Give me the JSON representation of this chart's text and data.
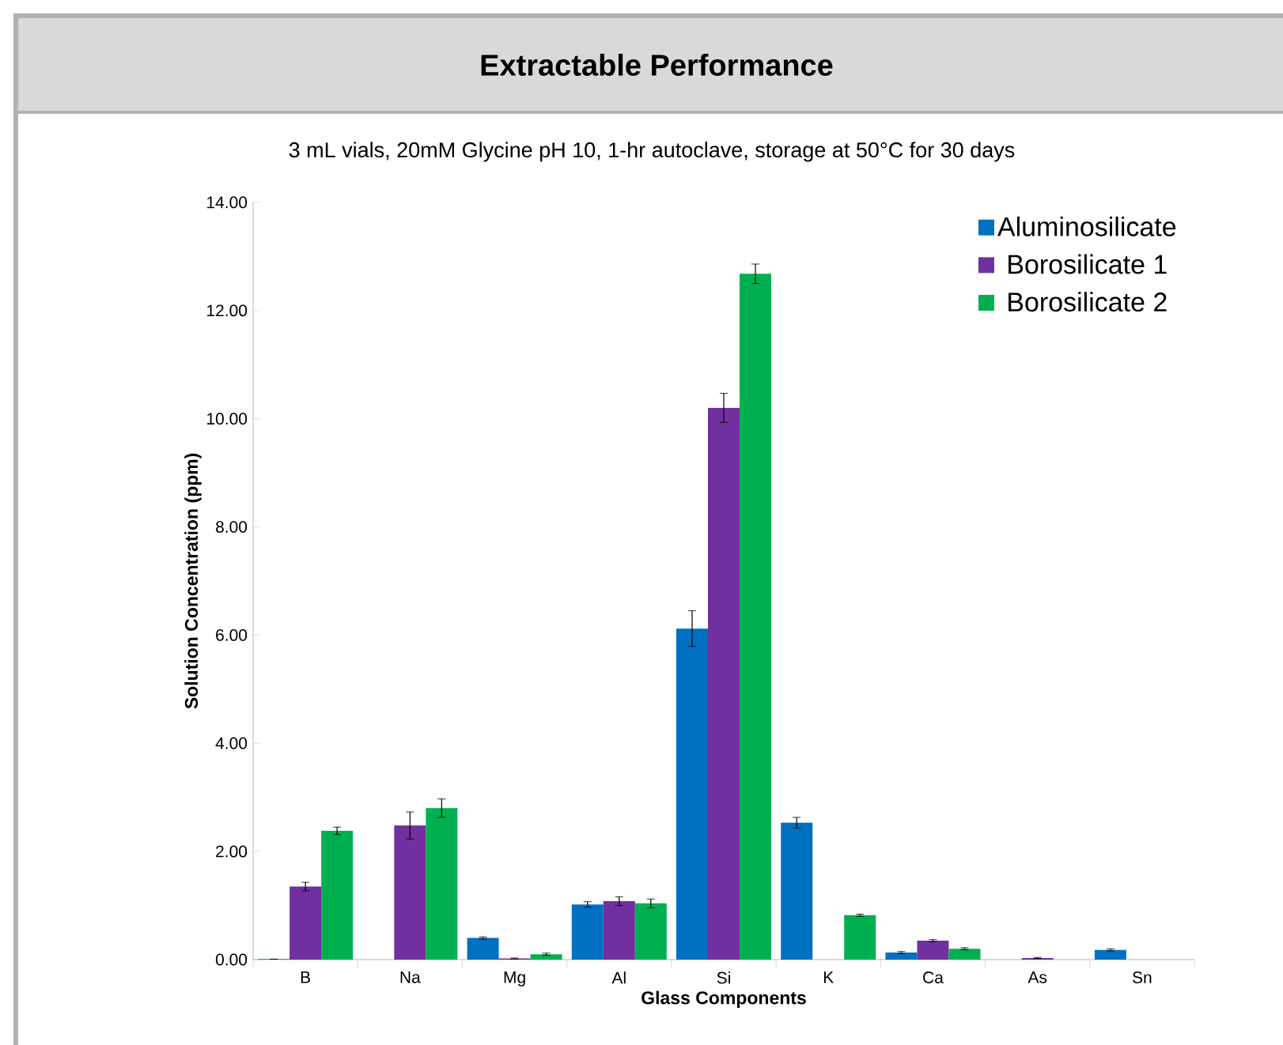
{
  "chart_data": {
    "type": "bar",
    "title": "Extractable Performance",
    "subtitle": "3 mL vials, 20mM Glycine pH 10, 1-hr autoclave, storage at 50°C for 30 days",
    "xlabel": "Glass Components",
    "ylabel": "Solution Concentration (ppm)",
    "categories": [
      "B",
      "Na",
      "Mg",
      "Al",
      "Si",
      "K",
      "Ca",
      "As",
      "Sn"
    ],
    "series": [
      {
        "name": "Aluminosilicate",
        "color": "#0070c0",
        "values": [
          0.01,
          null,
          0.4,
          1.02,
          6.12,
          2.53,
          0.13,
          null,
          0.18
        ],
        "errors": [
          null,
          null,
          0.02,
          0.05,
          0.33,
          0.1,
          0.02,
          null,
          0.02
        ]
      },
      {
        "name": "Borosilicate 1",
        "color": "#7030a0",
        "values": [
          1.35,
          2.48,
          0.02,
          1.08,
          10.2,
          null,
          0.35,
          0.03,
          null
        ],
        "errors": [
          0.08,
          0.25,
          0.01,
          0.08,
          0.27,
          null,
          0.02,
          0.01,
          null
        ]
      },
      {
        "name": "Borosilicate 2",
        "color": "#00b050",
        "values": [
          2.38,
          2.8,
          0.1,
          1.04,
          12.68,
          0.82,
          0.2,
          null,
          null
        ],
        "errors": [
          0.07,
          0.17,
          0.02,
          0.08,
          0.18,
          0.02,
          0.02,
          null,
          null
        ]
      }
    ],
    "ylim": [
      0,
      14
    ],
    "yticks": [
      {
        "value": 0,
        "label": "0.00"
      },
      {
        "value": 2,
        "label": "2.00"
      },
      {
        "value": 4,
        "label": "4.00"
      },
      {
        "value": 6,
        "label": "6.00"
      },
      {
        "value": 8,
        "label": "8.00"
      },
      {
        "value": 10,
        "label": "10.00"
      },
      {
        "value": 12,
        "label": "12.00"
      },
      {
        "value": 14,
        "label": "14.00"
      }
    ],
    "legend": "top right",
    "grid": false
  }
}
